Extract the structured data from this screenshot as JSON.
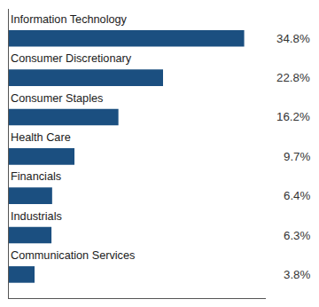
{
  "chart_data": {
    "type": "bar",
    "orientation": "horizontal",
    "categories": [
      "Communication Services",
      "Industrials",
      "Financials",
      "Health Care",
      "Consumer Staples",
      "Consumer Discretionary",
      "Information Technology"
    ],
    "values": [
      3.8,
      6.3,
      6.4,
      9.7,
      16.2,
      22.8,
      34.8
    ],
    "value_labels": [
      "3.8%",
      "6.3%",
      "6.4%",
      "9.7%",
      "16.2%",
      "22.8%",
      "34.8%"
    ],
    "color": "#1b4f80",
    "xlim": [
      0,
      38
    ],
    "data_labels": true,
    "tick_labels": false,
    "grid": false
  }
}
